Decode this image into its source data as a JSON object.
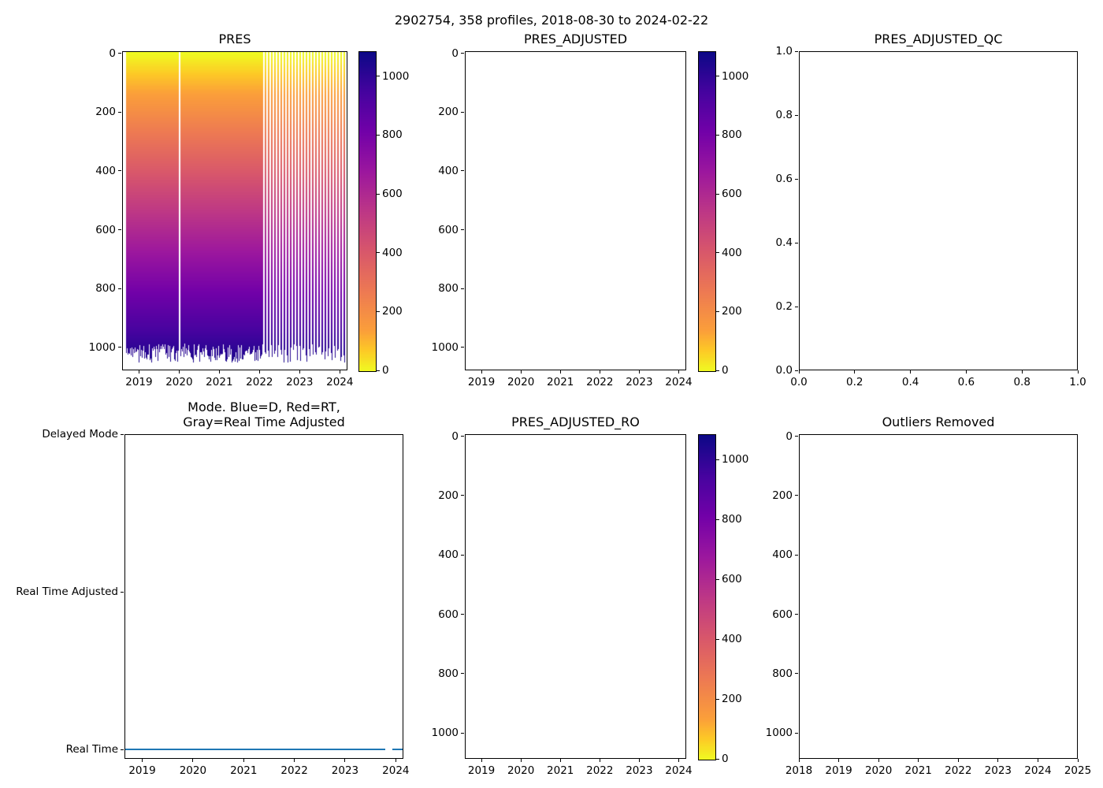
{
  "figure": {
    "suptitle": "2902754, 358 profiles, 2018-08-30 to 2024-02-22"
  },
  "chart_data": [
    {
      "id": "pres",
      "type": "heatmap",
      "title": "PRES",
      "x_ticks": [
        "2019",
        "2020",
        "2021",
        "2022",
        "2023",
        "2024"
      ],
      "x_range": [
        2018.58,
        2024.19
      ],
      "y_ticks": [
        "0",
        "200",
        "400",
        "600",
        "800",
        "1000"
      ],
      "y_range": [
        -7,
        1078
      ],
      "y_axis_note": "pressure axis inverted, 0 dbar at top",
      "colormap": "plasma_r",
      "colorbar_ticks": [
        "0",
        "200",
        "400",
        "600",
        "800",
        "1000"
      ],
      "colorbar_range": [
        0,
        1085
      ],
      "values_note": "each profile is a vertical column colored by PRES: 0 dbar (yellow) at surface grading to ~990-1085 dbar (dark blue) at the jagged bottom; profiles continuous from 2018-08-30 to early 2022, then intermittent thin stripes with white gaps until 2024-02-22",
      "data_start": 2018.66,
      "continuous_until": 2022.05,
      "data_end": 2024.15,
      "gap_lines_x": [
        2020.0
      ],
      "max_depth_range": [
        990,
        1055
      ]
    },
    {
      "id": "pres_adjusted",
      "type": "heatmap",
      "title": "PRES_ADJUSTED",
      "empty": true,
      "x_ticks": [
        "2019",
        "2020",
        "2021",
        "2022",
        "2023",
        "2024"
      ],
      "x_range": [
        2018.58,
        2024.19
      ],
      "y_ticks": [
        "0",
        "200",
        "400",
        "600",
        "800",
        "1000"
      ],
      "y_range": [
        -7,
        1078
      ],
      "colormap": "plasma_r",
      "colorbar_ticks": [
        "0",
        "200",
        "400",
        "600",
        "800",
        "1000"
      ],
      "colorbar_range": [
        0,
        1085
      ]
    },
    {
      "id": "pres_adjusted_qc",
      "type": "scatter",
      "title": "PRES_ADJUSTED_QC",
      "empty": true,
      "x_ticks": [
        "0.0",
        "0.2",
        "0.4",
        "0.6",
        "0.8",
        "1.0"
      ],
      "x_range": [
        0,
        1
      ],
      "y_ticks": [
        "1.0",
        "0.8",
        "0.6",
        "0.4",
        "0.2",
        "0.0"
      ],
      "y_range": [
        1,
        0
      ]
    },
    {
      "id": "mode",
      "type": "line",
      "title": "Mode. Blue=D, Red=RT,\nGray=Real Time Adjusted",
      "x_ticks": [
        "2019",
        "2020",
        "2021",
        "2022",
        "2023",
        "2024"
      ],
      "x_range": [
        2018.65,
        2024.15
      ],
      "y_categories": [
        "Delayed Mode",
        "Real Time Adjusted",
        "Real Time"
      ],
      "y_category_values": [
        2,
        1,
        0
      ],
      "y_range": [
        2.0,
        -0.06
      ],
      "series": [
        {
          "name": "Real Time",
          "color": "#1f77b4",
          "y_value": 0,
          "segments_x": [
            [
              2018.66,
              2023.79
            ],
            [
              2023.93,
              2024.14
            ]
          ],
          "values_note": "all profiles plotted at the Real Time level as a continuous blue line with a short gap near 2023.85"
        }
      ]
    },
    {
      "id": "pres_adjusted_ro",
      "type": "heatmap",
      "title": "PRES_ADJUSTED_RO",
      "empty": true,
      "x_ticks": [
        "2019",
        "2020",
        "2021",
        "2022",
        "2023",
        "2024"
      ],
      "x_range": [
        2018.58,
        2024.19
      ],
      "y_ticks": [
        "0",
        "200",
        "400",
        "600",
        "800",
        "1000"
      ],
      "y_range": [
        -7,
        1087
      ],
      "colormap": "plasma_r",
      "colorbar_ticks": [
        "0",
        "200",
        "400",
        "600",
        "800",
        "1000"
      ],
      "colorbar_range": [
        0,
        1085
      ]
    },
    {
      "id": "outliers_removed",
      "type": "heatmap",
      "title": "Outliers Removed",
      "empty": true,
      "x_ticks": [
        "2018",
        "2019",
        "2020",
        "2021",
        "2022",
        "2023",
        "2024",
        "2025"
      ],
      "x_range": [
        2018,
        2025
      ],
      "y_ticks": [
        "0",
        "200",
        "400",
        "600",
        "800",
        "1000"
      ],
      "y_range": [
        -7,
        1087
      ]
    }
  ]
}
